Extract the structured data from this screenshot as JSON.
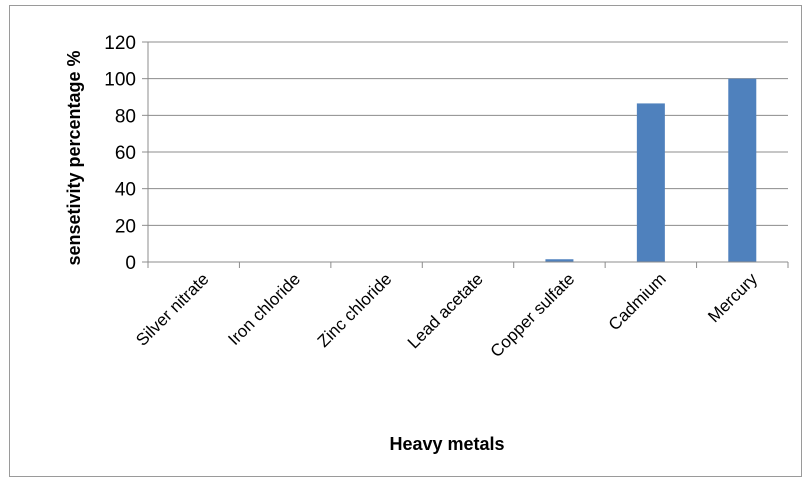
{
  "chart_data": {
    "type": "bar",
    "title": "",
    "xlabel": "Heavy metals",
    "ylabel": "sensetivity percentage %",
    "categories": [
      "Silver nitrate",
      "Iron chloride",
      "Zinc chloride",
      "Lead acetate",
      "Copper sulfate",
      "Cadmium",
      "Mercury"
    ],
    "values": [
      0,
      0,
      0,
      0,
      1.5,
      86.5,
      100
    ],
    "ylim": [
      0,
      120
    ],
    "yticks": [
      "0",
      "20",
      "40",
      "60",
      "80",
      "100",
      "120"
    ],
    "grid": true,
    "legend": "none",
    "bar_color": "#4f81bd",
    "grid_color": "#8c8c8c"
  }
}
